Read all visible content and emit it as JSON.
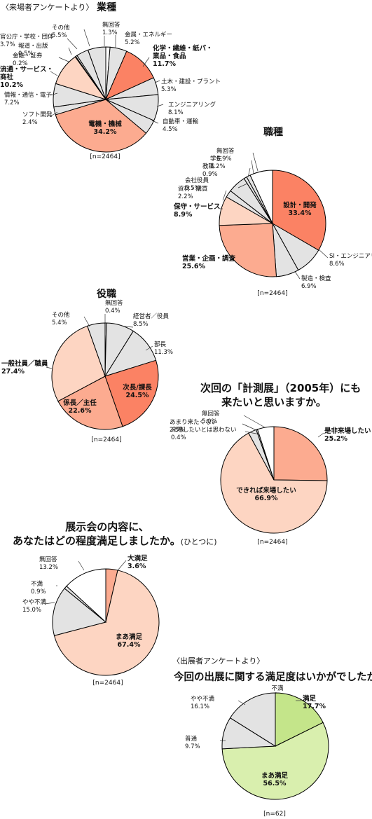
{
  "header_visitor": "〈来場者アンケートより〉",
  "header_exhibitor": "〈出展者アンケートより〉",
  "colors": {
    "dark": "#fb8264",
    "mid": "#fcab90",
    "light": "#fdd5c2",
    "grey": "#e3e3e3",
    "white": "#ffffff",
    "green_dark": "#c4e58a",
    "green_light": "#d9efae",
    "stroke": "#000000"
  },
  "chart_data": [
    {
      "type": "pie",
      "title": "業種",
      "n_label": "[n=2464]",
      "slices": [
        {
          "label": "無回答",
          "value": 1.3,
          "color": "white"
        },
        {
          "label": "金属・エネルギー",
          "value": 5.2,
          "color": "grey"
        },
        {
          "label": "化学・繊維・紙パ・\n業品・食品",
          "value": 11.7,
          "color": "dark",
          "bold": true
        },
        {
          "label": "土木・建設・プラント",
          "value": 5.3,
          "color": "grey"
        },
        {
          "label": "エンジニアリング",
          "value": 8.1,
          "color": "grey"
        },
        {
          "label": "自動車・運輸",
          "value": 4.5,
          "color": "grey"
        },
        {
          "label": "電機・機械",
          "value": 34.2,
          "color": "mid",
          "bold": true
        },
        {
          "label": "ソフト開発",
          "value": 2.4,
          "color": "grey"
        },
        {
          "label": "情報・通信・電子",
          "value": 7.2,
          "color": "grey"
        },
        {
          "label": "流通・サービス・\n商社",
          "value": 10.2,
          "color": "light",
          "bold": true
        },
        {
          "label": "金融・証券",
          "value": 0.2,
          "color": "grey"
        },
        {
          "label": "報道・出版",
          "value": 0.5,
          "color": "grey"
        },
        {
          "label": "官公庁・学校・団体",
          "value": 3.7,
          "color": "grey"
        },
        {
          "label": "その他",
          "value": 5.5,
          "color": "grey"
        }
      ]
    },
    {
      "type": "pie",
      "title": "職種",
      "n_label": "[n=2464]",
      "slices": [
        {
          "label": "設計・開発",
          "value": 33.4,
          "color": "dark",
          "bold": true
        },
        {
          "label": "SI・エンジニアリング",
          "value": 8.6,
          "color": "grey"
        },
        {
          "label": "製造・検査",
          "value": 6.9,
          "color": "grey"
        },
        {
          "label": "営業・企画・調査",
          "value": 25.6,
          "color": "mid",
          "bold": true
        },
        {
          "label": "保守・サービス",
          "value": 8.9,
          "color": "light",
          "bold": true
        },
        {
          "label": "資材・購買",
          "value": 2.2,
          "color": "grey"
        },
        {
          "label": "会社役員",
          "value": 5.5,
          "color": "grey"
        },
        {
          "label": "教職",
          "value": 0.9,
          "color": "grey"
        },
        {
          "label": "学生",
          "value": 1.2,
          "color": "grey"
        },
        {
          "label": "無回答",
          "value": 6.9,
          "color": "white"
        }
      ]
    },
    {
      "type": "pie",
      "title": "役職",
      "n_label": "[n=2464]",
      "slices": [
        {
          "label": "無回答",
          "value": 0.4,
          "color": "white"
        },
        {
          "label": "経営者／役員",
          "value": 8.5,
          "color": "grey"
        },
        {
          "label": "部長",
          "value": 11.3,
          "color": "grey"
        },
        {
          "label": "次長/課長",
          "value": 24.5,
          "color": "dark",
          "bold": true
        },
        {
          "label": "係長／主任",
          "value": 22.6,
          "color": "mid",
          "bold": true
        },
        {
          "label": "一般社員／職員",
          "value": 27.4,
          "color": "light",
          "bold": true
        },
        {
          "label": "その他",
          "value": 5.4,
          "color": "grey"
        }
      ]
    },
    {
      "type": "pie",
      "title": "次回の「計測展」（2005年）にも\n来たいと思いますか。",
      "n_label": "[n=2464]",
      "slices": [
        {
          "label": "是非来場したい",
          "value": 25.2,
          "color": "mid",
          "bold": true
        },
        {
          "label": "できれば来場したい",
          "value": 66.9,
          "color": "light",
          "bold": true
        },
        {
          "label": "あまり来たくない",
          "value": 2.5,
          "color": "grey"
        },
        {
          "label": "来場したいとは思わない",
          "value": 0.4,
          "color": "grey"
        },
        {
          "label": "無回答",
          "value": 5.0,
          "color": "white"
        }
      ]
    },
    {
      "type": "pie",
      "title": "展示会の内容に、\nあなたはどの程度満足しましたか。",
      "title_note": "(ひとつに)",
      "n_label": "[n=2464]",
      "slices": [
        {
          "label": "大満足",
          "value": 3.6,
          "color": "mid",
          "bold": true
        },
        {
          "label": "まあ満足",
          "value": 67.4,
          "color": "light",
          "bold": true
        },
        {
          "label": "やや不満",
          "value": 15.0,
          "color": "grey"
        },
        {
          "label": "不満",
          "value": 0.9,
          "color": "grey"
        },
        {
          "label": "無回答",
          "value": 13.2,
          "color": "white"
        }
      ]
    },
    {
      "type": "pie",
      "title": "今回の出展に関する満足度はいかがでしたか。",
      "n_label": "[n=62]",
      "slices": [
        {
          "label": "不満",
          "value": 0,
          "color": "grey"
        },
        {
          "label": "満足",
          "value": 17.7,
          "color": "green_dark",
          "bold": true
        },
        {
          "label": "まあ満足",
          "value": 56.5,
          "color": "green_light",
          "bold": true
        },
        {
          "label": "普通",
          "value": 9.7,
          "color": "grey"
        },
        {
          "label": "やや不満",
          "value": 16.1,
          "color": "grey"
        }
      ]
    }
  ]
}
